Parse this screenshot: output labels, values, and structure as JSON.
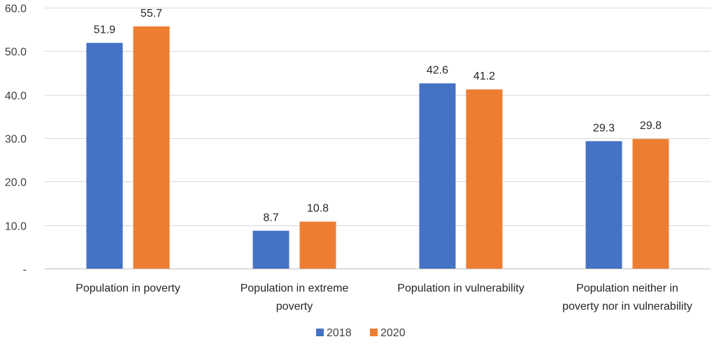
{
  "chart_data": {
    "type": "bar",
    "title": "",
    "xlabel": "",
    "ylabel": "",
    "ylim": [
      0,
      60
    ],
    "yticks": [
      {
        "value": 0,
        "label": "-"
      },
      {
        "value": 10,
        "label": "10.0"
      },
      {
        "value": 20,
        "label": "20.0"
      },
      {
        "value": 30,
        "label": "30.0"
      },
      {
        "value": 40,
        "label": "40.0"
      },
      {
        "value": 50,
        "label": "50.0"
      },
      {
        "value": 60,
        "label": "60.0"
      }
    ],
    "grid": true,
    "legend_position": "bottom",
    "categories": [
      [
        "Population in poverty"
      ],
      [
        "Population in extreme",
        "poverty"
      ],
      [
        "Population in vulnerability"
      ],
      [
        "Population neither in",
        "poverty nor in vulnerability"
      ]
    ],
    "series": [
      {
        "name": "2018",
        "color": "#4472C4",
        "values": [
          51.9,
          8.7,
          42.6,
          29.3
        ],
        "labels": [
          "51.9",
          "8.7",
          "42.6",
          "29.3"
        ]
      },
      {
        "name": "2020",
        "color": "#ED7D31",
        "values": [
          55.7,
          10.8,
          41.2,
          29.8
        ],
        "labels": [
          "55.7",
          "10.8",
          "41.2",
          "29.8"
        ]
      }
    ]
  }
}
